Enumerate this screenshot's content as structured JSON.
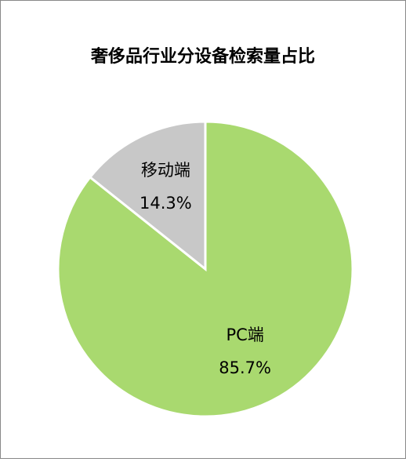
{
  "chart_data": {
    "type": "pie",
    "title": "奢侈品行业分设备检索量占比",
    "categories": [
      "PC端",
      "移动端"
    ],
    "values": [
      85.7,
      14.3
    ],
    "value_labels": [
      "85.7%",
      "14.3%"
    ],
    "colors": [
      "#a9d96f",
      "#c8c8c8"
    ]
  }
}
